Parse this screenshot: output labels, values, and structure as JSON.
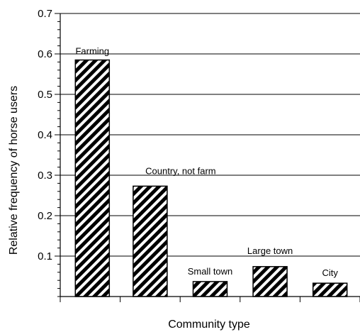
{
  "chart_data": {
    "type": "bar",
    "title": "",
    "xlabel": "Community type",
    "ylabel": "Relative frequency of horse users",
    "ylim": [
      0,
      0.7
    ],
    "yticks": [
      "0.1",
      "0.2",
      "0.3",
      "0.4",
      "0.5",
      "0.6",
      "0.7"
    ],
    "grid": "horizontal",
    "bar_pattern": "diagonal-hatch",
    "categories": [
      "Farming",
      "Country, not farm",
      "Small town",
      "Large town",
      "City"
    ],
    "values": [
      0.585,
      0.273,
      0.037,
      0.074,
      0.033
    ]
  }
}
